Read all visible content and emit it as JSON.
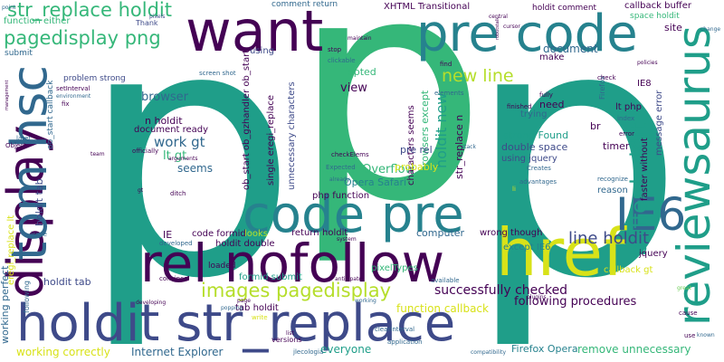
{
  "palette": {
    "teal": "#1f9e89",
    "green": "#35b779",
    "purple": "#3e4a89",
    "navy": "#440154",
    "lime": "#b5de2b",
    "yellow": "#d8e219",
    "blue": "#31688e",
    "aqua": "#26828e",
    "lightgreen": "#6ece58"
  },
  "words": {
    "p_big_left": "p",
    "p_big_mid": "p",
    "p_big_right": "p",
    "want": "want",
    "pre_code": "pre code",
    "code_pre": "code pre",
    "rel_nofollow": "rel nofollow",
    "holdit_str_replace": "holdit str_replace",
    "display": "display",
    "tom_hsc": "tom hsc",
    "href": "href",
    "ie6": "IE6",
    "reviewsaurus": "reviewsaurus",
    "str_replace_holdit": "str_replace holdit",
    "pagedisplay_png": "pagedisplay png",
    "images_pagedisplay": "images pagedisplay",
    "buffer_holdit": "buffer holdit",
    "new_line": "new line",
    "holdit_new": "holdit new",
    "line_holdit": "line holdit",
    "stack_overflow": "Stack Overflow",
    "work_gt": "work gt",
    "lt_gt": "lt gt",
    "seems": "seems",
    "browser": "browser",
    "n_holdit": "n holdit",
    "document_ready": "document ready",
    "document": "document",
    "view": "view",
    "opted": "opted",
    "successfully_checked": "successfully checked",
    "following_procedures": "following procedures",
    "internet_explorer": "Internet Explorer",
    "working_correctly": "working correctly",
    "everyone": "everyone",
    "firefox_opera": "Firefox Opera",
    "remove_unnecessary": "remove unnecessary",
    "function_callback": "function callback",
    "xhtml_transitional": "XHTML Transitional",
    "comment_return": "comment return",
    "holdit_comment": "holdit comment",
    "callback_buffer": "callback buffer",
    "space_holdit": "space holdit",
    "site": "site",
    "function_either": "function either",
    "thank": "Thank",
    "submit": "submit",
    "problem_strong": "problem strong",
    "using": "using",
    "screen_shot": "screen shot",
    "ob_start_callback": "ob_start callback",
    "ob_gzhandler": "ob_start ob_gzhandler ob_start",
    "single_ereg": "single eregi_replace",
    "unnecessary_characters": "unnecessary characters",
    "characters_seems": "characters seems",
    "browsers_except": "browsers except",
    "str_replace_n": "str_replace n",
    "pre_rel": "pre rel",
    "php_function": "php function",
    "opera_safari": "Opera Safari",
    "strong_found": "strong Found",
    "double_space": "double space",
    "using_jquery": "using jquery",
    "probably": "probably",
    "computer": "computer",
    "wrong_though": "wrong though",
    "except_ie6": "except IE6",
    "jquery": "jquery",
    "callback_gt": "callback gt",
    "ie": "IE",
    "code_formid": "code formid",
    "looks": "looks",
    "return": "return",
    "holdit_small": "holdit",
    "holdit_double": "holdit double",
    "formid_submit": "formid submit",
    "pixeltypes": "pixelTypes",
    "tab_holdit": "tab holdit",
    "holdit_tab": "holdit tab",
    "ereg_replace_lt": "eregi_replace lt",
    "working_perfect": "working perfect",
    "timer": "timer",
    "faster_without": "faster without",
    "message_error": "message error",
    "reason": "reason",
    "make": "make",
    "need": "need",
    "trying": "trying",
    "br": "br",
    "lt_php": "lt php",
    "comment": "comment",
    "loaded": "loaded",
    "version": "versions",
    "application": "application",
    "clearinterval": "clearInterval",
    "jlecologia": "jlecologia",
    "firefox": "Firefox",
    "available": "available",
    "find": "find",
    "finished": "finished",
    "fully": "fully",
    "check": "check",
    "index": "index",
    "error": "error",
    "expected": "Expected",
    "creates": "Creates",
    "checkelems": "checkElems",
    "elements": "elements",
    "advantages": "advantages",
    "recognize": "recognize",
    "stop": "stop",
    "clickable": "clickable",
    "setinterval": "setInterval",
    "fix": "fix",
    "later": "later",
    "object": "Object",
    "officially": "officially",
    "arguments": "arguments",
    "ditch": "ditch",
    "point": "point",
    "pixels": "pixels",
    "write": "write",
    "popping": "popping",
    "convince": "convince",
    "developed": "developed",
    "plugins": "plugins",
    "cause": "cause",
    "use": "use",
    "known": "known",
    "change": "change",
    "compatibility": "compatibility",
    "issue": "issue",
    "following": "following",
    "ie8": "IE8",
    "li": "li",
    "team": "team",
    "maintain": "maintain",
    "already": "already",
    "gt_small": "gt",
    "policies": "policies",
    "environment": "environment",
    "management": "management",
    "developing": "developing",
    "great": "great",
    "list": "list",
    "anticipate": "anticipate",
    "system": "system",
    "working": "working",
    "page": "page",
    "stack": "stack",
    "central": "central",
    "cursor": "cursor",
    "robotitalic": "robotstalk"
  }
}
